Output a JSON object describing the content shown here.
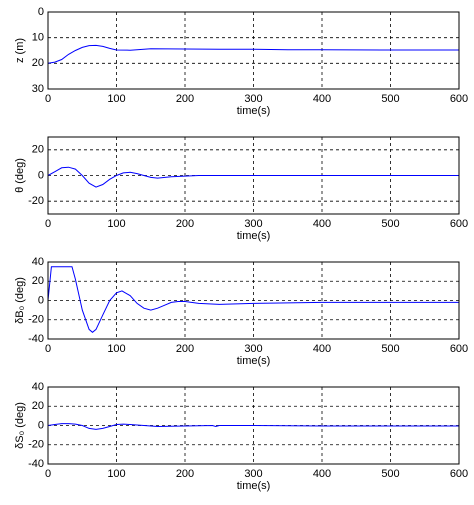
{
  "chart_data": [
    {
      "type": "line",
      "ylabel": "z (m)",
      "xlabel": "time(s)",
      "color": "#0000ff",
      "grid": true,
      "y_reversed": true,
      "x": [
        0,
        10,
        20,
        30,
        40,
        50,
        60,
        70,
        80,
        90,
        100,
        120,
        150,
        200,
        250,
        300,
        350,
        400,
        500,
        600
      ],
      "values": [
        20,
        19.5,
        18.5,
        16.5,
        15,
        13.8,
        13.1,
        13,
        13.4,
        14.2,
        14.8,
        14.9,
        14.3,
        14.4,
        14.5,
        14.5,
        14.7,
        14.7,
        14.8,
        14.8
      ],
      "xlim": [
        0,
        600
      ],
      "xticks": [
        0,
        100,
        200,
        300,
        400,
        500,
        600
      ],
      "ylim": [
        0,
        30
      ],
      "yticks": [
        0,
        10,
        20,
        30
      ]
    },
    {
      "type": "line",
      "ylabel": "θ (deg)",
      "xlabel": "time(s)",
      "color": "#0000ff",
      "grid": true,
      "x": [
        0,
        10,
        20,
        30,
        40,
        50,
        60,
        70,
        80,
        90,
        100,
        110,
        120,
        130,
        140,
        150,
        160,
        180,
        200,
        220,
        300,
        600
      ],
      "values": [
        0,
        3,
        6,
        6.5,
        5,
        0,
        -6,
        -9,
        -7,
        -3,
        0,
        2,
        2.5,
        1.5,
        0,
        -1.5,
        -2,
        -1,
        -0.5,
        0,
        0,
        0
      ],
      "xlim": [
        0,
        600
      ],
      "xticks": [
        0,
        100,
        200,
        300,
        400,
        500,
        600
      ],
      "ylim": [
        -30,
        30
      ],
      "yticks": [
        -20,
        0,
        20
      ]
    },
    {
      "type": "line",
      "ylabel": "δB₀ (deg)",
      "xlabel": "time(s)",
      "color": "#0000ff",
      "grid": true,
      "x": [
        0,
        5,
        10,
        20,
        30,
        35,
        40,
        50,
        60,
        65,
        70,
        80,
        90,
        100,
        108,
        120,
        130,
        140,
        150,
        160,
        170,
        180,
        190,
        200,
        220,
        250,
        300,
        400,
        600
      ],
      "values": [
        0,
        35,
        35,
        35,
        35,
        35,
        22,
        -10,
        -30,
        -33,
        -30,
        -15,
        0,
        8,
        10,
        5,
        -3,
        -8,
        -10,
        -8,
        -5,
        -2,
        -1,
        -1,
        -3,
        -4,
        -3,
        -2,
        -2
      ],
      "xlim": [
        0,
        600
      ],
      "xticks": [
        0,
        100,
        200,
        300,
        400,
        500,
        600
      ],
      "ylim": [
        -40,
        40
      ],
      "yticks": [
        -40,
        -20,
        0,
        20,
        40
      ]
    },
    {
      "type": "line",
      "ylabel": "δS₀ (deg)",
      "xlabel": "time(s)",
      "color": "#0000ff",
      "grid": true,
      "x": [
        0,
        10,
        20,
        30,
        40,
        50,
        60,
        70,
        80,
        90,
        100,
        110,
        120,
        140,
        160,
        200,
        240,
        245,
        250,
        300,
        400,
        600
      ],
      "values": [
        0,
        1,
        2,
        2,
        1.5,
        0,
        -3,
        -4,
        -3,
        -1,
        1,
        1.5,
        1,
        0,
        -1,
        -0.5,
        0,
        -1,
        0,
        0,
        -0.5,
        -0.5
      ],
      "xlim": [
        0,
        600
      ],
      "xticks": [
        0,
        100,
        200,
        300,
        400,
        500,
        600
      ],
      "ylim": [
        -40,
        40
      ],
      "yticks": [
        -40,
        -20,
        0,
        20,
        40
      ]
    }
  ]
}
